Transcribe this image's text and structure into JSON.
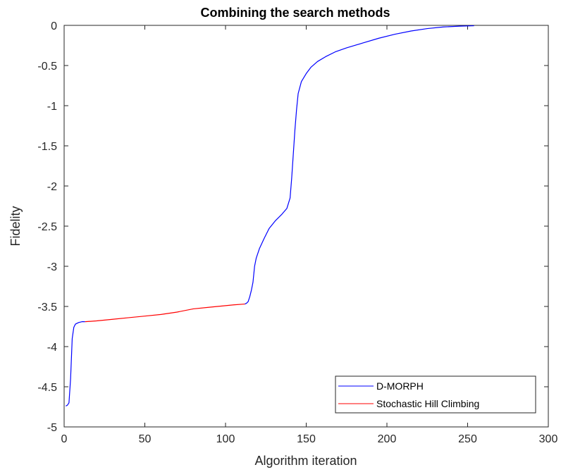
{
  "chart_data": {
    "type": "line",
    "title": "Combining the search methods",
    "xlabel": "Algorithm iteration",
    "ylabel": "Fidelity",
    "xlim": [
      0,
      300
    ],
    "ylim": [
      -5,
      0
    ],
    "xticks": [
      0,
      50,
      100,
      150,
      200,
      250,
      300
    ],
    "yticks": [
      0,
      -0.5,
      -1,
      -1.5,
      -2,
      -2.5,
      -3,
      -3.5,
      -4,
      -4.5,
      -5
    ],
    "xtick_labels": [
      "0",
      "50",
      "100",
      "150",
      "200",
      "250",
      "300"
    ],
    "ytick_labels": [
      "0",
      "-0.5",
      "-1",
      "-1.5",
      "-2",
      "-2.5",
      "-3",
      "-3.5",
      "-4",
      "-4.5",
      "-5"
    ],
    "grid": false,
    "legend_position": "bottom-right",
    "series": [
      {
        "name": "D-MORPH",
        "color": "#0000ff",
        "segments": [
          [
            [
              1,
              -4.74
            ],
            [
              2,
              -4.73
            ],
            [
              3,
              -4.7
            ],
            [
              4,
              -4.4
            ],
            [
              5,
              -3.9
            ],
            [
              6,
              -3.76
            ],
            [
              7,
              -3.72
            ],
            [
              9,
              -3.7
            ],
            [
              11,
              -3.69
            ],
            [
              13,
              -3.69
            ]
          ],
          [
            [
              112,
              -3.47
            ],
            [
              113,
              -3.46
            ],
            [
              114,
              -3.44
            ],
            [
              115,
              -3.38
            ],
            [
              116,
              -3.3
            ],
            [
              117,
              -3.2
            ],
            [
              118,
              -3.0
            ],
            [
              119,
              -2.9
            ],
            [
              121,
              -2.78
            ],
            [
              124,
              -2.65
            ],
            [
              127,
              -2.53
            ],
            [
              131,
              -2.43
            ],
            [
              135,
              -2.35
            ],
            [
              138,
              -2.28
            ],
            [
              140,
              -2.15
            ],
            [
              141,
              -1.9
            ],
            [
              142,
              -1.6
            ],
            [
              143,
              -1.3
            ],
            [
              144,
              -1.05
            ],
            [
              145,
              -0.85
            ],
            [
              147,
              -0.7
            ],
            [
              150,
              -0.6
            ],
            [
              153,
              -0.52
            ],
            [
              157,
              -0.45
            ],
            [
              162,
              -0.39
            ],
            [
              168,
              -0.33
            ],
            [
              175,
              -0.28
            ],
            [
              185,
              -0.22
            ],
            [
              195,
              -0.16
            ],
            [
              205,
              -0.11
            ],
            [
              215,
              -0.07
            ],
            [
              225,
              -0.04
            ],
            [
              235,
              -0.02
            ],
            [
              245,
              -0.01
            ],
            [
              254,
              -0.005
            ]
          ]
        ]
      },
      {
        "name": "Stochastic Hill Climbing",
        "color": "#ff0000",
        "segments": [
          [
            [
              13,
              -3.69
            ],
            [
              20,
              -3.68
            ],
            [
              30,
              -3.66
            ],
            [
              40,
              -3.64
            ],
            [
              50,
              -3.62
            ],
            [
              60,
              -3.6
            ],
            [
              70,
              -3.57
            ],
            [
              80,
              -3.53
            ],
            [
              90,
              -3.51
            ],
            [
              100,
              -3.49
            ],
            [
              105,
              -3.48
            ],
            [
              112,
              -3.47
            ]
          ]
        ]
      }
    ]
  }
}
